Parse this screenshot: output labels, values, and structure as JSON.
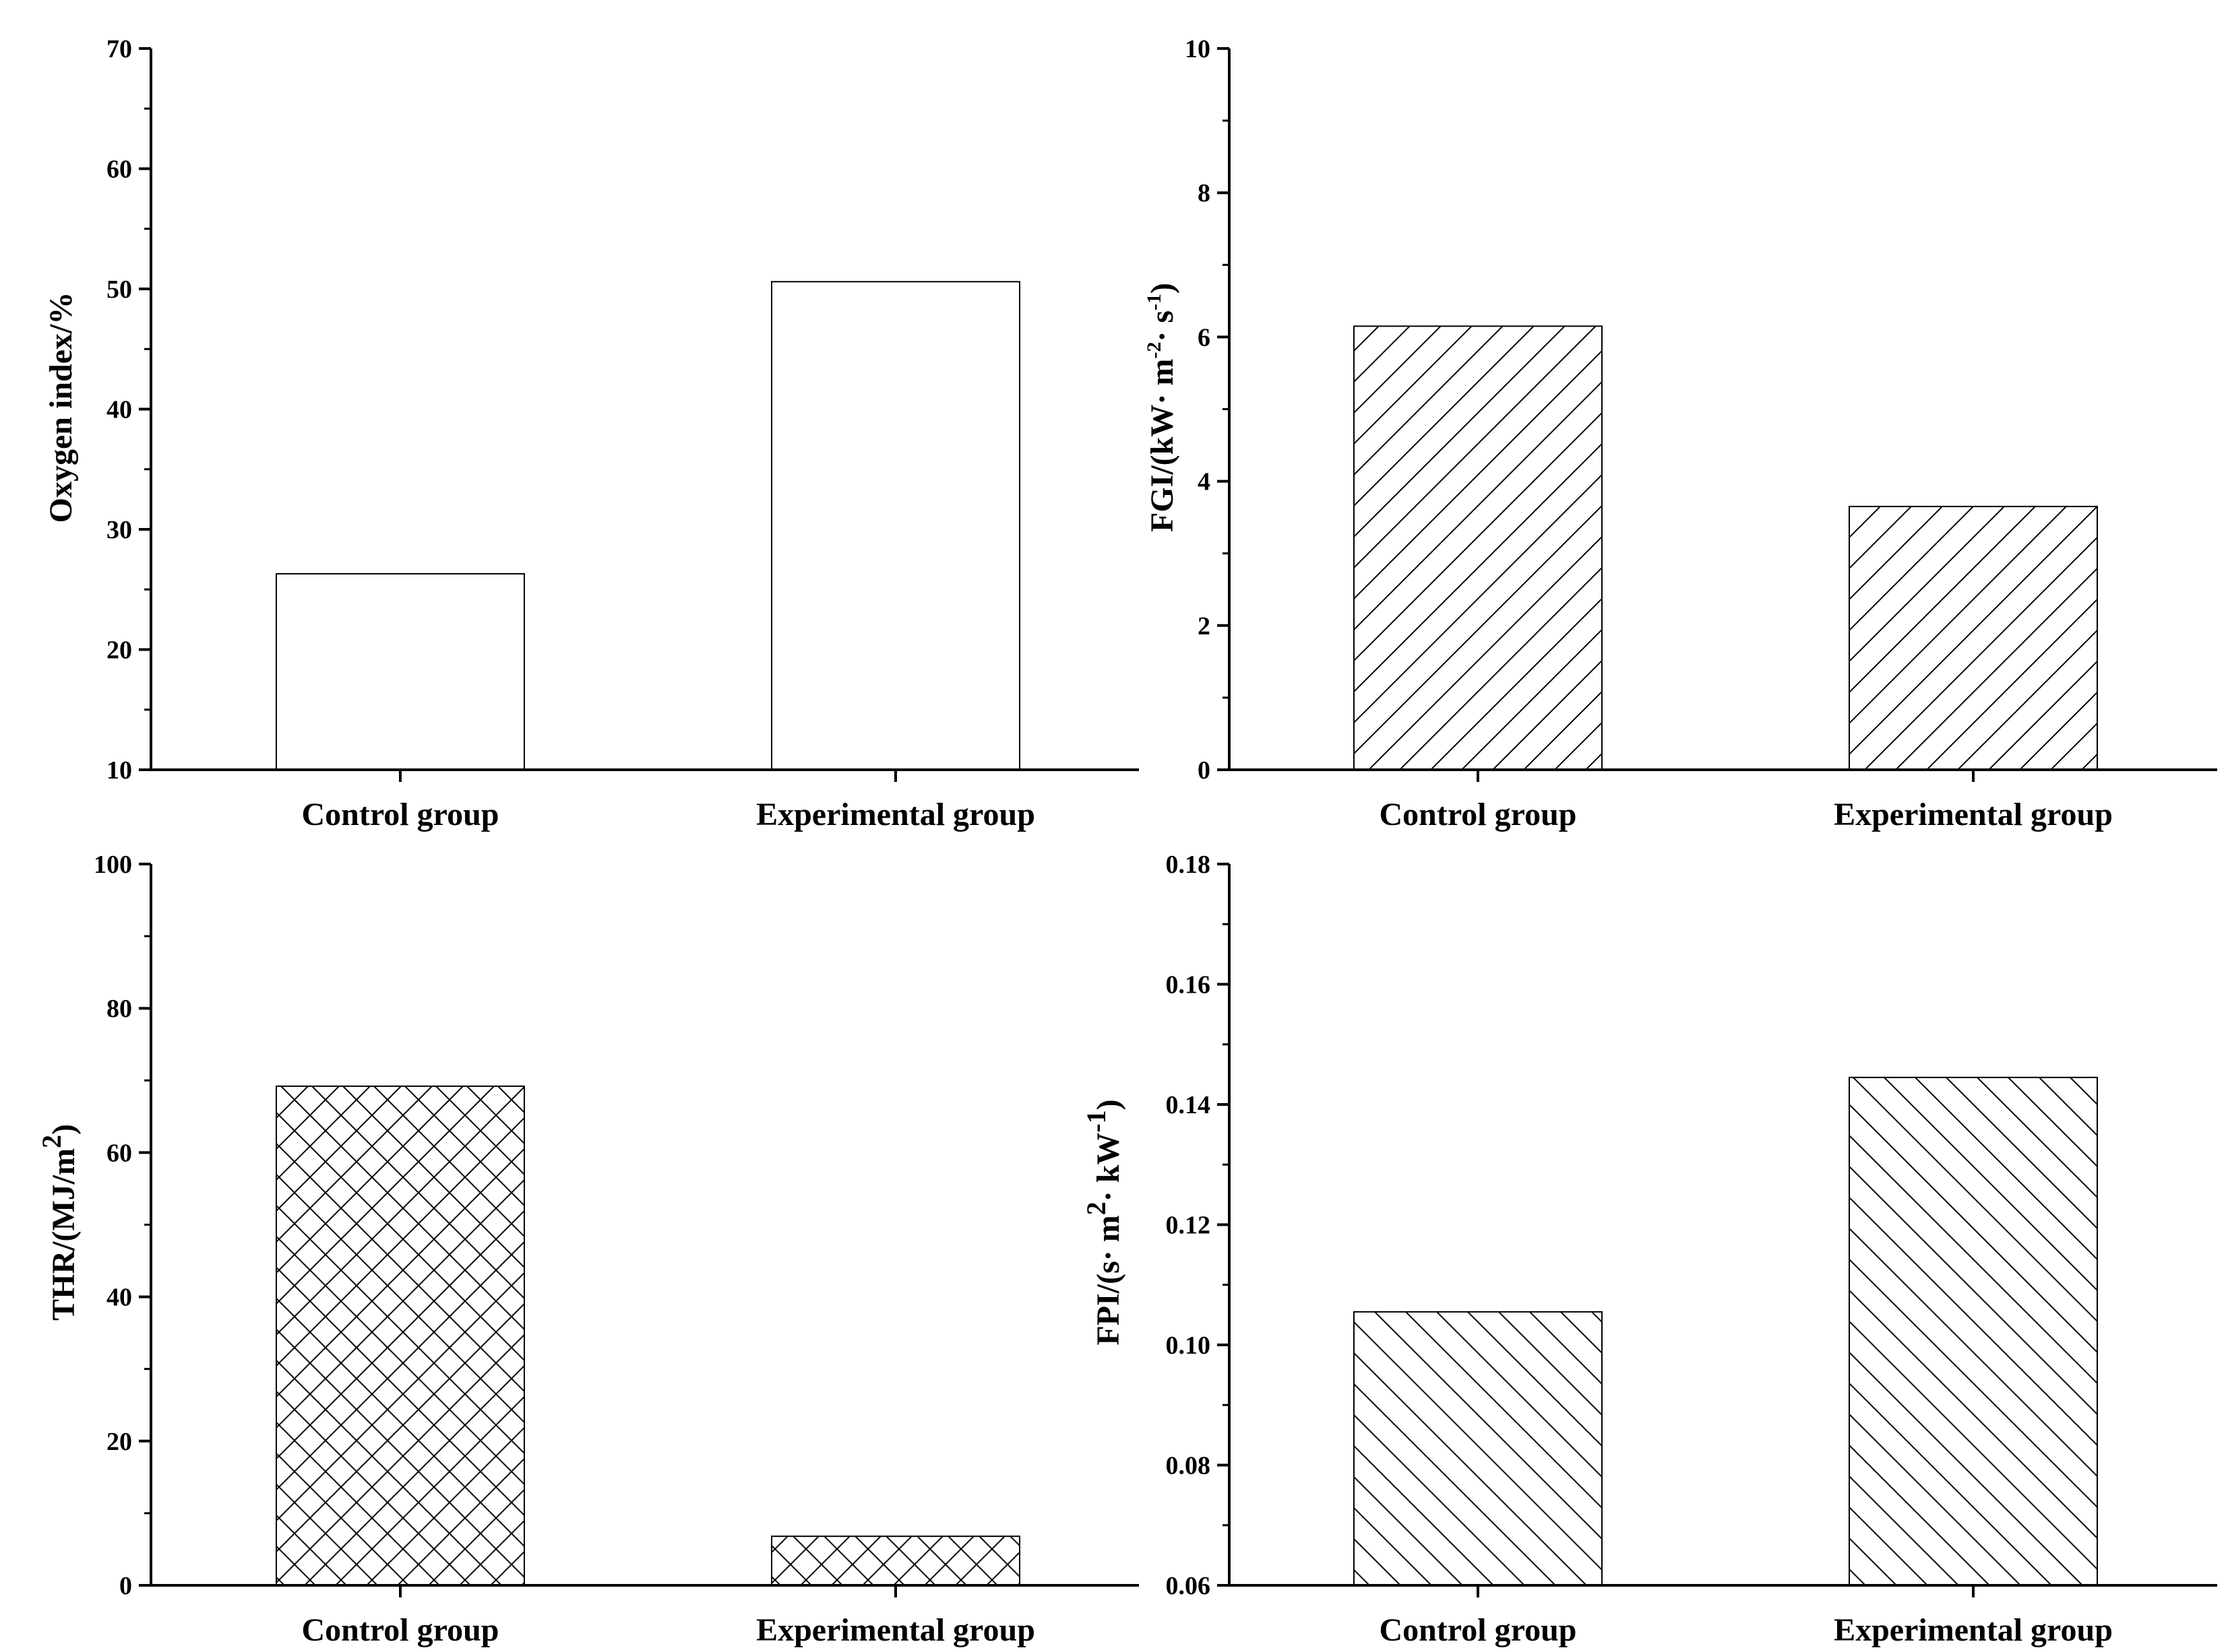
{
  "chart_data": [
    {
      "type": "bar",
      "panel": "top-left",
      "categories": [
        "Control group",
        "Experimental group"
      ],
      "values": [
        26.3,
        50.6
      ],
      "ylim": [
        10,
        70
      ],
      "yticks": [
        "10",
        "20",
        "30",
        "40",
        "50",
        "60",
        "70"
      ],
      "ylabel": "Oxygen index/%",
      "fill_pattern": "none",
      "title": "",
      "xlabel": ""
    },
    {
      "type": "bar",
      "panel": "top-right",
      "categories": [
        "Control group",
        "Experimental group"
      ],
      "values": [
        6.15,
        3.65
      ],
      "ylim": [
        0,
        10
      ],
      "yticks": [
        "0",
        "2",
        "4",
        "6",
        "8",
        "10"
      ],
      "ylabel": "FGI/(kW· m-2· s-1)",
      "ylabel_parts": {
        "a": "FGI/(kW· m",
        "b": "-2",
        "c": "· s",
        "d": "-1",
        "e": ")"
      },
      "fill_pattern": "diagonal-forward",
      "title": "",
      "xlabel": ""
    },
    {
      "type": "bar",
      "panel": "bottom-left",
      "categories": [
        "Control group",
        "Experimental group"
      ],
      "values": [
        69.2,
        6.8
      ],
      "ylim": [
        0,
        100
      ],
      "yticks": [
        "0",
        "20",
        "40",
        "60",
        "80",
        "100"
      ],
      "ylabel": "THR/(MJ/m2)",
      "ylabel_parts": {
        "a": "THR/(MJ/m",
        "b": "2",
        "c": ")"
      },
      "fill_pattern": "crosshatch",
      "title": "",
      "xlabel": ""
    },
    {
      "type": "bar",
      "panel": "bottom-right",
      "categories": [
        "Control group",
        "Experimental group"
      ],
      "values": [
        0.1055,
        0.1445
      ],
      "ylim": [
        0.06,
        0.18
      ],
      "yticks": [
        "0.06",
        "0.08",
        "0.10",
        "0.12",
        "0.14",
        "0.16",
        "0.18"
      ],
      "ylabel": "FPI/(s· m2· kW-1)",
      "ylabel_parts": {
        "a": "FPI/(s· m",
        "b": "2",
        "c": "· kW",
        "d": "-1",
        "e": ")"
      },
      "fill_pattern": "diagonal-back",
      "title": "",
      "xlabel": ""
    }
  ]
}
